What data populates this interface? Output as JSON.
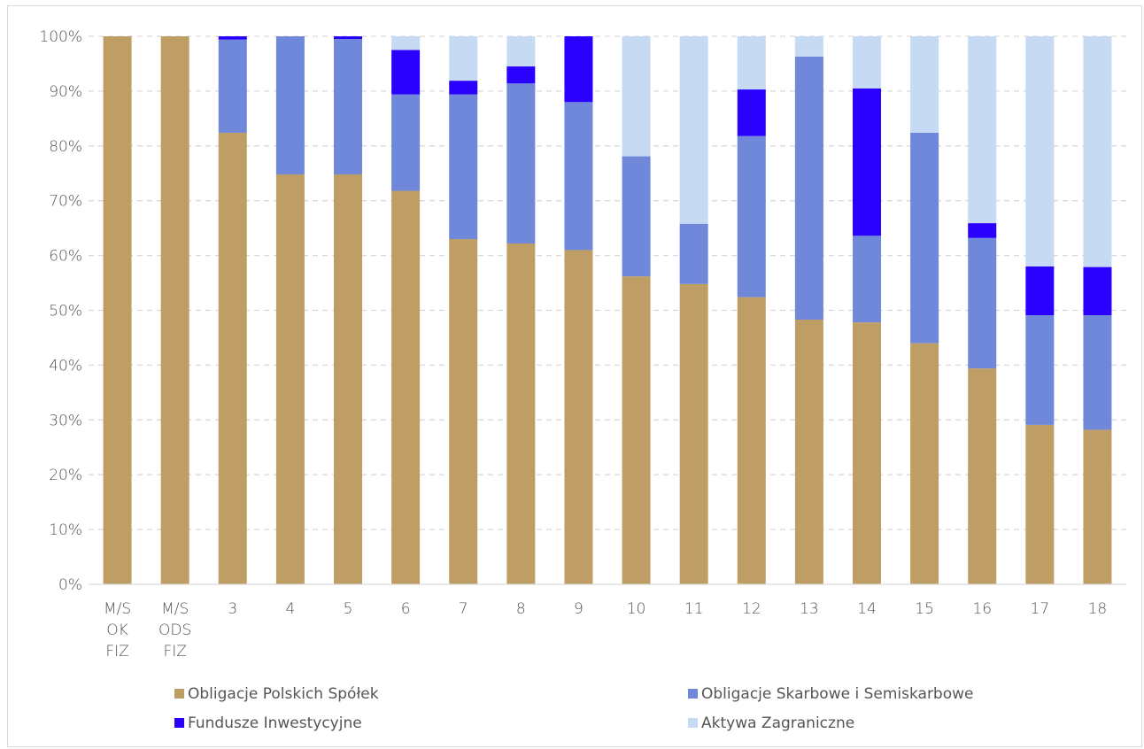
{
  "chart_data": {
    "type": "bar",
    "stacked": true,
    "percent": true,
    "ylim": [
      0,
      100
    ],
    "yticks": [
      "0%",
      "10%",
      "20%",
      "30%",
      "40%",
      "50%",
      "60%",
      "70%",
      "80%",
      "90%",
      "100%"
    ],
    "grid": true,
    "legend_position": "bottom",
    "categories": [
      [
        "M/S",
        "OK",
        "FIZ"
      ],
      [
        "M/S",
        "ODS",
        "FIZ"
      ],
      [
        "3"
      ],
      [
        "4"
      ],
      [
        "5"
      ],
      [
        "6"
      ],
      [
        "7"
      ],
      [
        "8"
      ],
      [
        "9"
      ],
      [
        "10"
      ],
      [
        "11"
      ],
      [
        "12"
      ],
      [
        "13"
      ],
      [
        "14"
      ],
      [
        "15"
      ],
      [
        "16"
      ],
      [
        "17"
      ],
      [
        "18"
      ]
    ],
    "series": [
      {
        "name": "Obligacje Polskich Spółek",
        "color": "#BF9E66",
        "values": [
          100,
          100,
          82.4,
          74.8,
          74.8,
          71.8,
          63,
          62.2,
          61,
          56.2,
          54.8,
          52.4,
          48.3,
          47.8,
          44,
          39.4,
          29.1,
          28.2
        ]
      },
      {
        "name": "Obligacje Skarbowe i Semiskarbowe",
        "color": "#6F88D9",
        "values": [
          0,
          0,
          17,
          25.2,
          24.7,
          17.6,
          26.4,
          29.2,
          27,
          21.9,
          11,
          29.4,
          48,
          15.8,
          38.4,
          23.8,
          20,
          20.9
        ]
      },
      {
        "name": "Fundusze Inwestycyjne",
        "color": "#2A00FF",
        "values": [
          0,
          0,
          0.6,
          0,
          0.5,
          8.1,
          2.5,
          3.1,
          12,
          0,
          0,
          8.5,
          0,
          26.9,
          0,
          2.7,
          8.9,
          8.8
        ]
      },
      {
        "name": "Aktywa Zagraniczne",
        "color": "#C6DAF3",
        "values": [
          0,
          0,
          0,
          0,
          0,
          2.5,
          8.1,
          5.5,
          0,
          21.9,
          34.2,
          9.7,
          3.7,
          9.5,
          17.6,
          34.1,
          42,
          42.1
        ]
      }
    ]
  }
}
